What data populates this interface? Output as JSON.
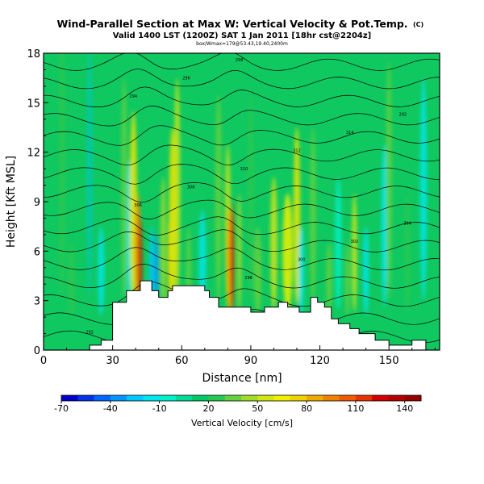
{
  "chart_data": {
    "type": "heatmap",
    "title": "Wind-Parallel Section at Max W: Vertical Velocity & Pot.Temp.",
    "title_mark": "(C)",
    "subtitle": "Valid 1400 LST (1200Z) SAT 1 Jan 2011 [18hr cst@2204z]",
    "subtitle2": "box/Wmax=179@53.43,19.40,2400m",
    "xlabel": "Distance [nm]",
    "ylabel": "Height [Kft MSL]",
    "xlim": [
      0,
      172
    ],
    "ylim": [
      0,
      18
    ],
    "xticks": [
      0,
      30,
      60,
      90,
      120,
      150
    ],
    "yticks": [
      0,
      3,
      6,
      9,
      12,
      15,
      18
    ],
    "colorbar": {
      "label": "Vertical Velocity [cm/s]",
      "tick_labels": [
        "-70",
        "-40",
        "-10",
        "20",
        "50",
        "80",
        "110",
        "140"
      ],
      "tick_values": [
        -70,
        -40,
        -10,
        20,
        50,
        80,
        110,
        140
      ],
      "range": [
        -70,
        150
      ],
      "colors": [
        "#0000c8",
        "#0032e6",
        "#0064ff",
        "#0096ff",
        "#00c8ff",
        "#00e6f0",
        "#00f0c8",
        "#00dc96",
        "#00c864",
        "#28c850",
        "#64d23c",
        "#a0dc28",
        "#d2e614",
        "#f0f000",
        "#f0d200",
        "#f0aa00",
        "#f08200",
        "#f05a00",
        "#e63200",
        "#d20000",
        "#b40000",
        "#960000"
      ]
    },
    "terrain": [
      [
        0,
        0
      ],
      [
        20,
        0
      ],
      [
        20,
        0.3
      ],
      [
        25,
        0.3
      ],
      [
        25,
        0.6
      ],
      [
        30,
        0.6
      ],
      [
        30,
        2.9
      ],
      [
        36,
        2.9
      ],
      [
        36,
        3.6
      ],
      [
        42,
        3.6
      ],
      [
        42,
        4.2
      ],
      [
        47,
        4.2
      ],
      [
        47,
        3.6
      ],
      [
        50,
        3.6
      ],
      [
        50,
        3.2
      ],
      [
        54,
        3.2
      ],
      [
        54,
        3.6
      ],
      [
        56,
        3.6
      ],
      [
        56,
        3.9
      ],
      [
        70,
        3.9
      ],
      [
        70,
        3.6
      ],
      [
        72,
        3.6
      ],
      [
        72,
        3.2
      ],
      [
        76,
        3.2
      ],
      [
        76,
        2.6
      ],
      [
        90,
        2.6
      ],
      [
        90,
        2.3
      ],
      [
        96,
        2.3
      ],
      [
        96,
        2.6
      ],
      [
        102,
        2.6
      ],
      [
        102,
        2.9
      ],
      [
        106,
        2.9
      ],
      [
        106,
        2.6
      ],
      [
        111,
        2.6
      ],
      [
        111,
        2.3
      ],
      [
        116,
        2.3
      ],
      [
        116,
        3.2
      ],
      [
        119,
        3.2
      ],
      [
        119,
        2.9
      ],
      [
        122,
        2.9
      ],
      [
        122,
        2.6
      ],
      [
        125,
        2.6
      ],
      [
        125,
        1.9
      ],
      [
        128,
        1.9
      ],
      [
        128,
        1.6
      ],
      [
        133,
        1.6
      ],
      [
        133,
        1.3
      ],
      [
        137,
        1.3
      ],
      [
        137,
        1.0
      ],
      [
        144,
        1.0
      ],
      [
        144,
        0.6
      ],
      [
        150,
        0.6
      ],
      [
        150,
        0.3
      ],
      [
        160,
        0.3
      ],
      [
        160,
        0.6
      ],
      [
        166,
        0.6
      ],
      [
        166,
        0
      ],
      [
        0,
        0
      ]
    ],
    "contour_labels": [
      "292",
      "294",
      "296",
      "298",
      "300",
      "302",
      "304",
      "306",
      "308",
      "310",
      "312",
      "314"
    ]
  }
}
